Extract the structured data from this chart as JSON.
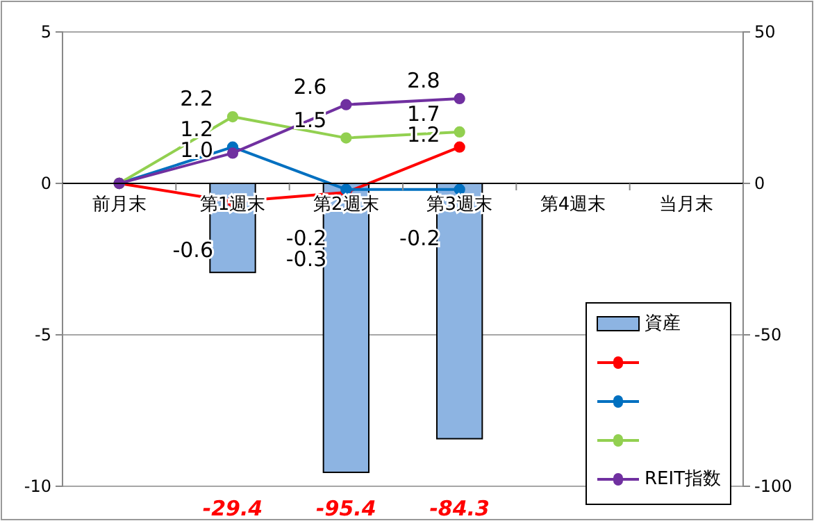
{
  "chart_data": {
    "type": "line",
    "categories": [
      "前月末",
      "第1週末",
      "第2週末",
      "第3週末",
      "第4週末",
      "当月末"
    ],
    "ylim": [
      -10,
      5
    ],
    "yticks": [
      -10,
      -5,
      0,
      5
    ],
    "y2lim": [
      -100,
      50
    ],
    "y2ticks": [
      -100,
      -50,
      0,
      50
    ],
    "grid": "y",
    "legend": "bottom right",
    "marker": "circle",
    "series": [
      {
        "name": "資産",
        "type": "bar",
        "axis": "y2",
        "color": "#8db4e2",
        "values": [
          null,
          -29.4,
          -95.4,
          -84.3,
          null,
          null
        ],
        "value_labels": [
          null,
          "-29.4",
          "-95.4",
          "-84.3",
          null,
          null
        ]
      },
      {
        "color": "#ff0000",
        "values": [
          0,
          -0.6,
          -0.3,
          1.2,
          null,
          null
        ],
        "value_labels": [
          null,
          "-0.6",
          "-0.3",
          "1.2",
          null,
          null
        ]
      },
      {
        "color": "#0070c0",
        "values": [
          0,
          1.2,
          -0.2,
          -0.2,
          null,
          null
        ],
        "value_labels": [
          null,
          "1.2",
          "-0.2",
          "-0.2",
          null,
          null
        ]
      },
      {
        "color": "#92d050",
        "values": [
          0,
          2.2,
          1.5,
          1.7,
          null,
          null
        ],
        "value_labels": [
          null,
          "2.2",
          "1.5",
          "1.7",
          null,
          null
        ]
      },
      {
        "name": "REIT指数",
        "color": "#7030a0",
        "values": [
          0,
          1.0,
          2.6,
          2.8,
          null,
          null
        ],
        "value_labels": [
          null,
          "1.0",
          "2.6",
          "2.8",
          null,
          null
        ]
      }
    ]
  }
}
